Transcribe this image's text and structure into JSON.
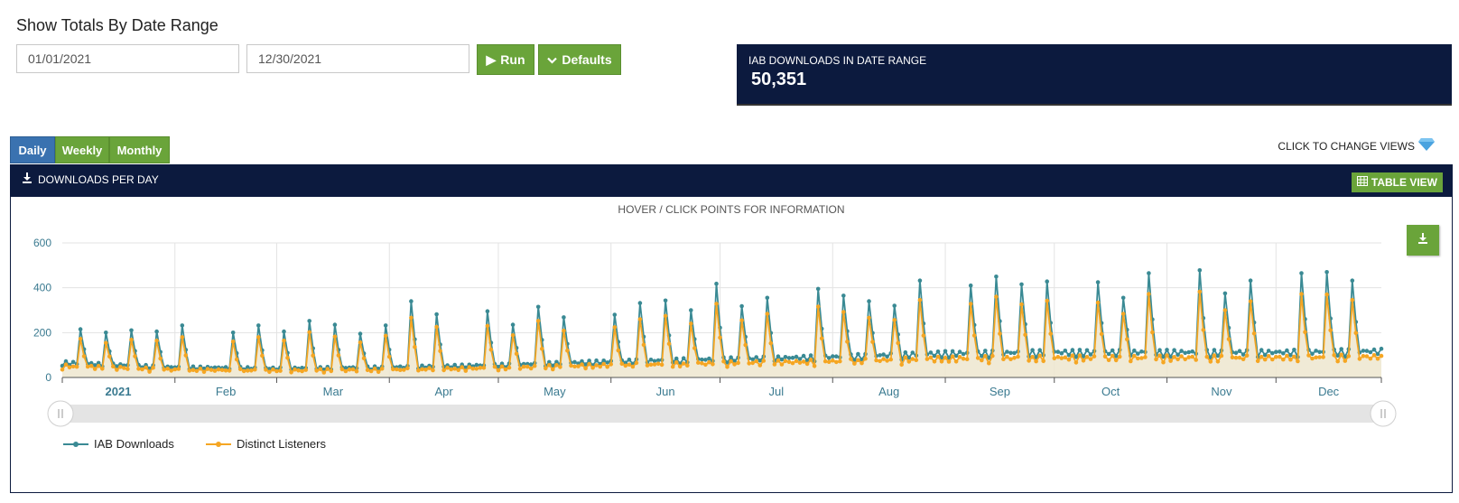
{
  "heading": "Show Totals By Date Range",
  "date_range": {
    "start": "01/01/2021",
    "end": "12/30/2021"
  },
  "buttons": {
    "run": "Run",
    "defaults": "Defaults"
  },
  "stat": {
    "label": "IAB DOWNLOADS IN DATE RANGE",
    "value": "50,351"
  },
  "tabs": [
    {
      "label": "Daily",
      "active": true
    },
    {
      "label": "Weekly",
      "active": false
    },
    {
      "label": "Monthly",
      "active": false
    }
  ],
  "change_views": "CLICK TO CHANGE VIEWS",
  "panel": {
    "title": "DOWNLOADS PER DAY",
    "table_view": "TABLE VIEW",
    "hint": "HOVER / CLICK POINTS FOR INFORMATION"
  },
  "colors": {
    "navy": "#0c1a3e",
    "green": "#6aa43a",
    "blue_tab": "#3a72b0",
    "series1": "#3a8a94",
    "series2": "#f5a623",
    "area": "#ede6cf"
  },
  "chart_data": {
    "type": "line",
    "x_start": "2021-01-01",
    "x_end": "2021-12-30",
    "x_tick_labels": [
      "2021",
      "Feb",
      "Mar",
      "Apr",
      "May",
      "Jun",
      "Jul",
      "Aug",
      "Sep",
      "Oct",
      "Nov",
      "Dec"
    ],
    "y_ticks": [
      0,
      200,
      400,
      600
    ],
    "ylim": [
      0,
      600
    ],
    "legend_position": "bottom-left",
    "has_navigator": true,
    "series": [
      {
        "name": "IAB Downloads",
        "color": "#3a8a94",
        "baseline": [
          65,
          45,
          40,
          45,
          55,
          70,
          80,
          90,
          105,
          110,
          110,
          110,
          115
        ],
        "peaks": [
          [
            "2021-01-06",
            215
          ],
          [
            "2021-01-13",
            200
          ],
          [
            "2021-01-20",
            210
          ],
          [
            "2021-01-27",
            205
          ],
          [
            "2021-02-03",
            232
          ],
          [
            "2021-02-17",
            200
          ],
          [
            "2021-02-24",
            232
          ],
          [
            "2021-03-03",
            205
          ],
          [
            "2021-03-10",
            252
          ],
          [
            "2021-03-17",
            235
          ],
          [
            "2021-03-24",
            195
          ],
          [
            "2021-03-31",
            232
          ],
          [
            "2021-04-07",
            340
          ],
          [
            "2021-04-14",
            282
          ],
          [
            "2021-04-28",
            295
          ],
          [
            "2021-05-05",
            235
          ],
          [
            "2021-05-12",
            315
          ],
          [
            "2021-05-19",
            268
          ],
          [
            "2021-06-02",
            280
          ],
          [
            "2021-06-09",
            332
          ],
          [
            "2021-06-16",
            343
          ],
          [
            "2021-06-23",
            300
          ],
          [
            "2021-06-30",
            418
          ],
          [
            "2021-07-07",
            318
          ],
          [
            "2021-07-14",
            355
          ],
          [
            "2021-07-28",
            395
          ],
          [
            "2021-08-04",
            365
          ],
          [
            "2021-08-11",
            340
          ],
          [
            "2021-08-18",
            320
          ],
          [
            "2021-08-25",
            432
          ],
          [
            "2021-09-08",
            410
          ],
          [
            "2021-09-15",
            450
          ],
          [
            "2021-09-22",
            415
          ],
          [
            "2021-09-29",
            428
          ],
          [
            "2021-10-13",
            425
          ],
          [
            "2021-10-20",
            355
          ],
          [
            "2021-10-27",
            465
          ],
          [
            "2021-11-10",
            478
          ],
          [
            "2021-11-17",
            375
          ],
          [
            "2021-11-24",
            432
          ],
          [
            "2021-12-08",
            465
          ],
          [
            "2021-12-15",
            470
          ],
          [
            "2021-12-22",
            432
          ]
        ]
      },
      {
        "name": "Distinct Listeners",
        "color": "#f5a623",
        "ratio": 0.8
      }
    ]
  }
}
